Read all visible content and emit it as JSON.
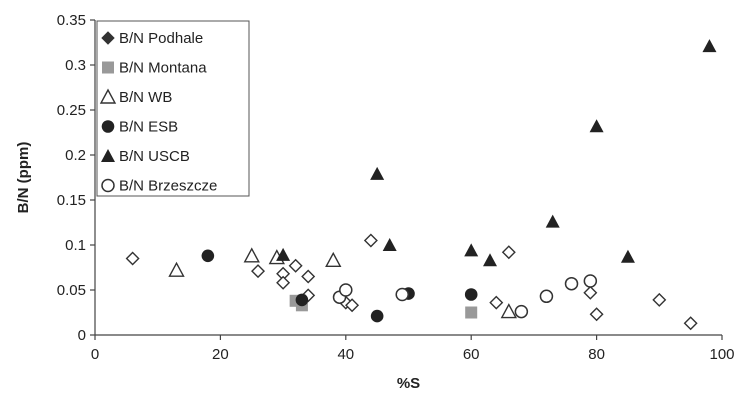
{
  "chart_data": {
    "type": "scatter",
    "xlabel": "%S",
    "ylabel": "B/N (ppm)",
    "xlim": [
      0,
      100
    ],
    "ylim": [
      0,
      0.35
    ],
    "xticks": [
      "0",
      "20",
      "40",
      "60",
      "80",
      "100"
    ],
    "yticks": [
      "0",
      "0.05",
      "0.1",
      "0.15",
      "0.2",
      "0.25",
      "0.3",
      "0.35"
    ],
    "grid": false,
    "legend_position": "top-left",
    "series": [
      {
        "name": "B/N Podhale",
        "marker": "diamond-open",
        "color": "#333333",
        "points": [
          [
            6,
            0.085
          ],
          [
            26,
            0.071
          ],
          [
            32,
            0.077
          ],
          [
            30,
            0.068
          ],
          [
            30,
            0.058
          ],
          [
            34,
            0.065
          ],
          [
            34,
            0.044
          ],
          [
            40,
            0.036
          ],
          [
            41,
            0.033
          ],
          [
            44,
            0.105
          ],
          [
            64,
            0.036
          ],
          [
            66,
            0.092
          ],
          [
            79,
            0.047
          ],
          [
            80,
            0.023
          ],
          [
            90,
            0.039
          ],
          [
            95,
            0.013
          ]
        ]
      },
      {
        "name": "B/N Montana",
        "marker": "square-filled",
        "color": "#999999",
        "points": [
          [
            32,
            0.038
          ],
          [
            33,
            0.033
          ],
          [
            60,
            0.025
          ]
        ]
      },
      {
        "name": "B/N WB",
        "marker": "triangle-open",
        "color": "#333333",
        "points": [
          [
            13,
            0.072
          ],
          [
            25,
            0.088
          ],
          [
            29,
            0.086
          ],
          [
            38,
            0.083
          ],
          [
            66,
            0.026
          ]
        ]
      },
      {
        "name": "B/N ESB",
        "marker": "circle-filled",
        "color": "#222222",
        "points": [
          [
            18,
            0.088
          ],
          [
            33,
            0.039
          ],
          [
            45,
            0.021
          ],
          [
            50,
            0.046
          ],
          [
            60,
            0.045
          ]
        ]
      },
      {
        "name": "B/N USCB",
        "marker": "triangle-filled",
        "color": "#222222",
        "points": [
          [
            30,
            0.089
          ],
          [
            45,
            0.179
          ],
          [
            47,
            0.1
          ],
          [
            60,
            0.094
          ],
          [
            63,
            0.083
          ],
          [
            73,
            0.126
          ],
          [
            80,
            0.232
          ],
          [
            85,
            0.087
          ],
          [
            98,
            0.321
          ]
        ]
      },
      {
        "name": "B/N Brzeszcze",
        "marker": "circle-open",
        "color": "#333333",
        "points": [
          [
            39,
            0.042
          ],
          [
            40,
            0.05
          ],
          [
            49,
            0.045
          ],
          [
            68,
            0.026
          ],
          [
            72,
            0.043
          ],
          [
            76,
            0.057
          ],
          [
            79,
            0.06
          ]
        ]
      }
    ]
  }
}
